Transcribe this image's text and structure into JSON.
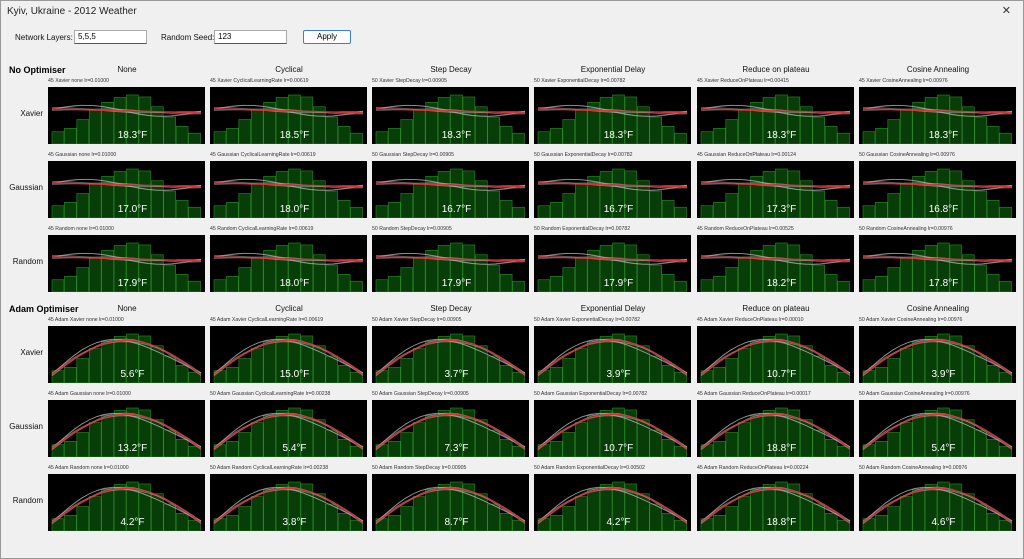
{
  "window": {
    "title": "Kyiv, Ukraine - 2012 Weather",
    "close": "✕"
  },
  "controls": {
    "layers_label": "Network Layers:",
    "layers_value": "5,5,5",
    "seed_label": "Random Seed:",
    "seed_value": "123",
    "apply": "Apply"
  },
  "sections": [
    {
      "title": "No Optimiser",
      "columns": [
        "None",
        "Cyclical",
        "Step Decay",
        "Exponential Delay",
        "Reduce on plateau",
        "Cosine Annealing"
      ],
      "rows": [
        {
          "label": "Xavier",
          "cells": [
            {
              "caption": "45 Xavier none lr=0.01000",
              "result": "18.3°F"
            },
            {
              "caption": "45 Xavier CyclicalLearningRate lr=0.00619",
              "result": "18.5°F"
            },
            {
              "caption": "50 Xavier StepDecay lr=0.00905",
              "result": "18.3°F"
            },
            {
              "caption": "50 Xavier ExponentialDecay lr=0.00782",
              "result": "18.3°F"
            },
            {
              "caption": "45 Xavier ReduceOnPlateau lr=0.00415",
              "result": "18.3°F"
            },
            {
              "caption": "45 Xavier CosineAnnealing lr=0.00976",
              "result": "18.3°F"
            }
          ]
        },
        {
          "label": "Gaussian",
          "cells": [
            {
              "caption": "45 Gaussian none lr=0.01000",
              "result": "17.0°F"
            },
            {
              "caption": "45 Gaussian CyclicalLearningRate lr=0.00619",
              "result": "18.0°F"
            },
            {
              "caption": "50 Gaussian StepDecay lr=0.00905",
              "result": "16.7°F"
            },
            {
              "caption": "50 Gaussian ExponentialDecay lr=0.00782",
              "result": "16.7°F"
            },
            {
              "caption": "45 Gaussian ReduceOnPlateau lr=0.00124",
              "result": "17.3°F"
            },
            {
              "caption": "50 Gaussian CosineAnnealing lr=0.00976",
              "result": "16.8°F"
            }
          ]
        },
        {
          "label": "Random",
          "cells": [
            {
              "caption": "45 Random none lr=0.01000",
              "result": "17.9°F"
            },
            {
              "caption": "45 Random CyclicalLearningRate lr=0.00619",
              "result": "18.0°F"
            },
            {
              "caption": "50 Random StepDecay lr=0.00905",
              "result": "17.9°F"
            },
            {
              "caption": "50 Random ExponentialDecay lr=0.00782",
              "result": "17.9°F"
            },
            {
              "caption": "45 Random ReduceOnPlateau lr=0.00525",
              "result": "18.2°F"
            },
            {
              "caption": "50 Random CosineAnnealing lr=0.00976",
              "result": "17.8°F"
            }
          ]
        }
      ]
    },
    {
      "title": "Adam Optimiser",
      "columns": [
        "None",
        "Cyclical",
        "Step Decay",
        "Exponential Delay",
        "Reduce on plateau",
        "Cosine Annealing"
      ],
      "rows": [
        {
          "label": "Xavier",
          "cells": [
            {
              "caption": "45 Adam Xavier none lr=0.01000",
              "result": "5.6°F"
            },
            {
              "caption": "45 Adam Xavier CyclicalLearningRate lr=0.00619",
              "result": "15.0°F"
            },
            {
              "caption": "50 Adam Xavier StepDecay lr=0.00905",
              "result": "3.7°F"
            },
            {
              "caption": "50 Adam Xavier ExponentialDecay lr=0.00782",
              "result": "3.9°F"
            },
            {
              "caption": "45 Adam Xavier ReduceOnPlateau lr=0.00010",
              "result": "10.7°F"
            },
            {
              "caption": "50 Adam Xavier CosineAnnealing lr=0.00976",
              "result": "3.9°F"
            }
          ]
        },
        {
          "label": "Gaussian",
          "cells": [
            {
              "caption": "45 Adam Gaussian none lr=0.01000",
              "result": "13.2°F"
            },
            {
              "caption": "50 Adam Gaussian CyclicalLearningRate lr=0.00238",
              "result": "5.4°F"
            },
            {
              "caption": "50 Adam Gaussian StepDecay lr=0.00905",
              "result": "7.3°F"
            },
            {
              "caption": "50 Adam Gaussian ExponentialDecay lr=0.00782",
              "result": "10.7°F"
            },
            {
              "caption": "45 Adam Gaussian ReduceOnPlateau lr=0.00017",
              "result": "18.8°F"
            },
            {
              "caption": "50 Adam Gaussian CosineAnnealing lr=0.00976",
              "result": "5.4°F"
            }
          ]
        },
        {
          "label": "Random",
          "cells": [
            {
              "caption": "45 Adam Random none lr=0.01000",
              "result": "4.2°F"
            },
            {
              "caption": "50 Adam Random CyclicalLearningRate lr=0.00238",
              "result": "3.8°F"
            },
            {
              "caption": "50 Adam Random StepDecay lr=0.00905",
              "result": "8.7°F"
            },
            {
              "caption": "50 Adam Random ExponentialDecay lr=0.00502",
              "result": "4.2°F"
            },
            {
              "caption": "45 Adam Random ReduceOnPlateau lr=0.00224",
              "result": "18.8°F"
            },
            {
              "caption": "50 Adam Random CosineAnnealing lr=0.00976",
              "result": "4.6°F"
            }
          ]
        }
      ]
    }
  ]
}
